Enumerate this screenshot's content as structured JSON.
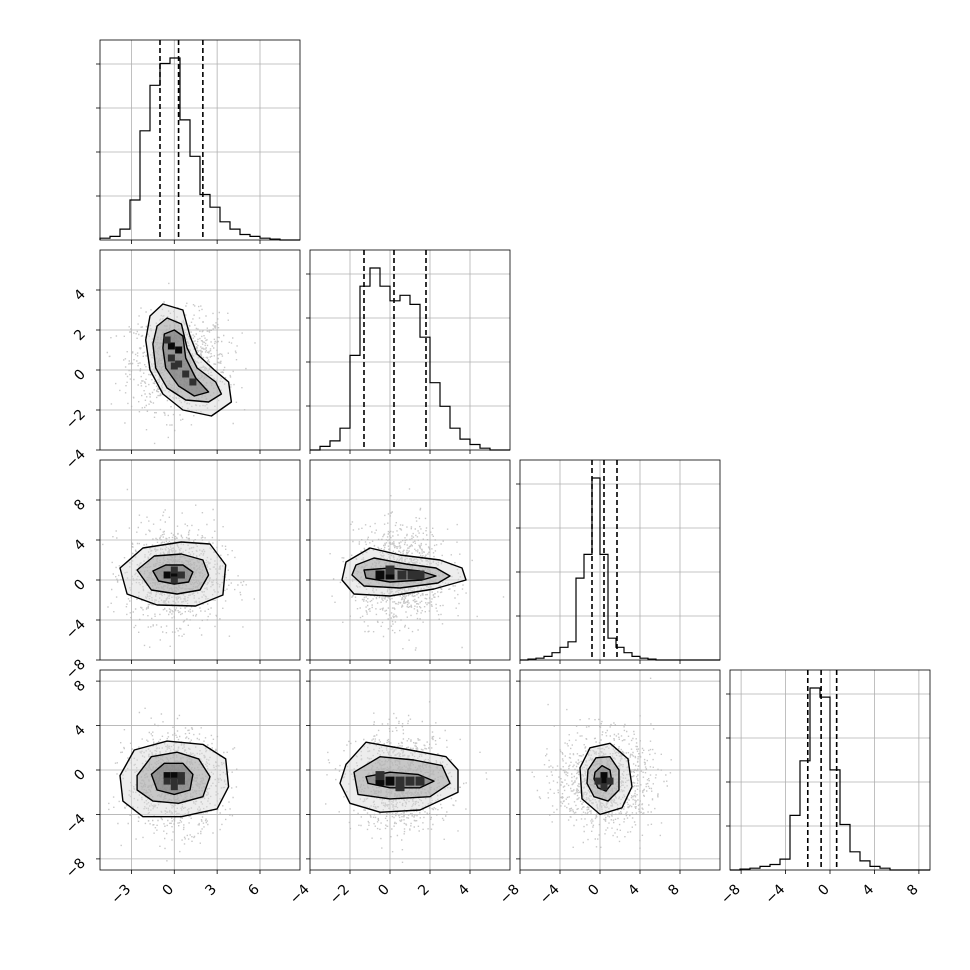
{
  "chart_data": {
    "type": "corner",
    "parameters": [
      {
        "range": [
          -5.2,
          8.8
        ],
        "ticks": [
          -3,
          0,
          3,
          6
        ],
        "tick_labels": [
          "−3",
          "0",
          "3",
          "6"
        ],
        "quantiles": [
          -1.0,
          0.3,
          2.0
        ],
        "hist_x0": -5.2,
        "hist_bin_width": 0.7,
        "hist": [
          0.01,
          0.02,
          0.06,
          0.22,
          0.6,
          0.85,
          0.97,
          1.0,
          0.66,
          0.46,
          0.25,
          0.18,
          0.1,
          0.06,
          0.03,
          0.02,
          0.01,
          0.005,
          0.0,
          0.0
        ]
      },
      {
        "range": [
          -4.0,
          6.0
        ],
        "ticks": [
          -4,
          -2,
          0,
          2,
          4
        ],
        "tick_labels": [
          "−4",
          "−2",
          "0",
          "2",
          "4"
        ],
        "quantiles": [
          -1.3,
          0.2,
          1.8
        ],
        "hist_x0": -4.0,
        "hist_bin_width": 0.5,
        "hist": [
          0.0,
          0.02,
          0.05,
          0.12,
          0.52,
          0.9,
          1.0,
          0.9,
          0.82,
          0.85,
          0.8,
          0.62,
          0.37,
          0.24,
          0.12,
          0.06,
          0.03,
          0.01,
          0.0,
          0.0
        ]
      },
      {
        "range": [
          -8.0,
          12.0
        ],
        "ticks": [
          -8,
          -4,
          0,
          4,
          8
        ],
        "tick_labels": [
          "−8",
          "−4",
          "0",
          "4",
          "8"
        ],
        "quantiles": [
          -0.8,
          0.4,
          1.7
        ],
        "hist_x0": -8.0,
        "hist_bin_width": 0.8,
        "hist": [
          0.0,
          0.005,
          0.01,
          0.02,
          0.04,
          0.07,
          0.1,
          0.45,
          0.58,
          1.0,
          0.58,
          0.12,
          0.07,
          0.04,
          0.02,
          0.01,
          0.005,
          0.0,
          0.0,
          0.0,
          0.0,
          0.0,
          0.0,
          0.0,
          0.0
        ]
      },
      {
        "range": [
          -9.0,
          9.0
        ],
        "ticks": [
          -8,
          -4,
          0,
          4,
          8
        ],
        "tick_labels": [
          "−8",
          "−4",
          "0",
          "4",
          "8"
        ],
        "quantiles": [
          -2.0,
          -0.8,
          0.6
        ],
        "hist_x0": -9.0,
        "hist_bin_width": 0.9,
        "hist": [
          0.0,
          0.005,
          0.01,
          0.02,
          0.03,
          0.06,
          0.3,
          0.6,
          1.0,
          0.95,
          0.55,
          0.25,
          0.1,
          0.05,
          0.02,
          0.01,
          0.0,
          0.0,
          0.0,
          0.0
        ]
      }
    ],
    "pairs": [
      {
        "row": 1,
        "col": 0,
        "center": [
          0.3,
          0.4
        ],
        "levels": [
          [
            [
              -1.7,
              2.7
            ],
            [
              -0.8,
              3.3
            ],
            [
              0.6,
              3.0
            ],
            [
              1.1,
              1.7
            ],
            [
              1.6,
              0.8
            ],
            [
              2.8,
              0.0
            ],
            [
              3.8,
              -0.6
            ],
            [
              4.0,
              -1.6
            ],
            [
              2.6,
              -2.3
            ],
            [
              0.6,
              -2.0
            ],
            [
              -0.8,
              -1.2
            ],
            [
              -1.7,
              0.0
            ],
            [
              -2.0,
              1.5
            ]
          ],
          [
            [
              -1.2,
              2.2
            ],
            [
              -0.5,
              2.6
            ],
            [
              0.5,
              2.3
            ],
            [
              0.9,
              1.1
            ],
            [
              1.6,
              0.1
            ],
            [
              2.9,
              -0.6
            ],
            [
              3.3,
              -1.2
            ],
            [
              2.4,
              -1.6
            ],
            [
              0.8,
              -1.5
            ],
            [
              -0.5,
              -0.9
            ],
            [
              -1.3,
              0.1
            ],
            [
              -1.5,
              1.3
            ]
          ],
          [
            [
              -0.7,
              1.8
            ],
            [
              0.0,
              2.0
            ],
            [
              0.6,
              1.7
            ],
            [
              0.8,
              0.6
            ],
            [
              1.5,
              -0.4
            ],
            [
              2.4,
              -1.1
            ],
            [
              1.4,
              -1.3
            ],
            [
              0.3,
              -0.8
            ],
            [
              -0.6,
              0.1
            ],
            [
              -0.8,
              1.1
            ]
          ]
        ],
        "cells": [
          [
            -0.2,
            1.2
          ],
          [
            0.3,
            1.0
          ],
          [
            -0.2,
            0.6
          ],
          [
            0.3,
            0.3
          ],
          [
            0.8,
            -0.2
          ],
          [
            1.3,
            -0.6
          ],
          [
            -0.5,
            1.5
          ],
          [
            0.0,
            0.2
          ]
        ]
      },
      {
        "row": 2,
        "col": 0,
        "center": [
          0.0,
          0.5
        ],
        "levels": [
          [
            [
              -3.8,
              1.2
            ],
            [
              -2.2,
              3.2
            ],
            [
              0.5,
              3.8
            ],
            [
              2.5,
              3.6
            ],
            [
              3.6,
              1.5
            ],
            [
              3.4,
              -1.5
            ],
            [
              1.5,
              -2.6
            ],
            [
              -1.2,
              -2.5
            ],
            [
              -3.3,
              -1.4
            ]
          ],
          [
            [
              -2.6,
              1.0
            ],
            [
              -1.4,
              2.4
            ],
            [
              0.5,
              2.6
            ],
            [
              2.0,
              2.0
            ],
            [
              2.4,
              0.5
            ],
            [
              1.8,
              -1.0
            ],
            [
              0.2,
              -1.4
            ],
            [
              -1.6,
              -1.0
            ]
          ],
          [
            [
              -1.5,
              0.9
            ],
            [
              -0.6,
              1.5
            ],
            [
              0.6,
              1.5
            ],
            [
              1.3,
              0.8
            ],
            [
              1.0,
              -0.2
            ],
            [
              0.0,
              -0.4
            ],
            [
              -1.1,
              -0.1
            ]
          ]
        ],
        "cells": [
          [
            -0.5,
            0.5
          ],
          [
            0.0,
            0.5
          ],
          [
            0.5,
            0.5
          ],
          [
            0.0,
            1.0
          ],
          [
            0.0,
            0.0
          ]
        ]
      },
      {
        "row": 2,
        "col": 1,
        "center": [
          0.5,
          0.5
        ],
        "levels": [
          [
            [
              -2.2,
              1.8
            ],
            [
              -1.0,
              3.2
            ],
            [
              0.5,
              2.5
            ],
            [
              2.5,
              2.0
            ],
            [
              3.6,
              1.2
            ],
            [
              3.8,
              0.0
            ],
            [
              2.2,
              -0.9
            ],
            [
              0.0,
              -1.6
            ],
            [
              -1.8,
              -1.4
            ],
            [
              -2.4,
              0.0
            ]
          ],
          [
            [
              -1.7,
              1.5
            ],
            [
              -0.8,
              2.2
            ],
            [
              0.8,
              1.6
            ],
            [
              2.3,
              1.2
            ],
            [
              3.0,
              0.4
            ],
            [
              2.4,
              -0.3
            ],
            [
              0.5,
              -0.8
            ],
            [
              -1.3,
              -0.6
            ],
            [
              -1.9,
              0.5
            ]
          ],
          [
            [
              -1.3,
              1.0
            ],
            [
              0.0,
              1.2
            ],
            [
              1.5,
              0.9
            ],
            [
              2.3,
              0.4
            ],
            [
              1.6,
              0.0
            ],
            [
              0.0,
              -0.2
            ],
            [
              -1.2,
              0.2
            ]
          ]
        ],
        "cells": [
          [
            -0.5,
            0.5
          ],
          [
            0.0,
            0.5
          ],
          [
            0.6,
            0.5
          ],
          [
            1.1,
            0.5
          ],
          [
            1.5,
            0.5
          ],
          [
            0.0,
            1.0
          ]
        ]
      },
      {
        "row": 3,
        "col": 0,
        "center": [
          0.0,
          -1.0
        ],
        "levels": [
          [
            [
              -3.8,
              -0.5
            ],
            [
              -2.8,
              1.8
            ],
            [
              -0.5,
              2.6
            ],
            [
              2.0,
              2.3
            ],
            [
              3.6,
              1.0
            ],
            [
              3.8,
              -1.5
            ],
            [
              3.0,
              -3.5
            ],
            [
              0.5,
              -4.2
            ],
            [
              -2.2,
              -4.2
            ],
            [
              -3.6,
              -2.8
            ]
          ],
          [
            [
              -2.6,
              -0.5
            ],
            [
              -1.6,
              1.2
            ],
            [
              0.2,
              1.6
            ],
            [
              1.7,
              1.0
            ],
            [
              2.5,
              -0.6
            ],
            [
              2.0,
              -2.4
            ],
            [
              0.3,
              -3.0
            ],
            [
              -1.5,
              -2.8
            ],
            [
              -2.6,
              -1.8
            ]
          ],
          [
            [
              -1.6,
              -0.4
            ],
            [
              -0.7,
              0.6
            ],
            [
              0.6,
              0.6
            ],
            [
              1.3,
              -0.4
            ],
            [
              1.1,
              -1.8
            ],
            [
              0.0,
              -2.2
            ],
            [
              -1.2,
              -1.8
            ]
          ]
        ],
        "cells": [
          [
            -0.5,
            -0.5
          ],
          [
            0.0,
            -0.5
          ],
          [
            0.5,
            -0.5
          ],
          [
            -0.5,
            -1.0
          ],
          [
            0.0,
            -1.0
          ],
          [
            0.5,
            -1.0
          ],
          [
            0.0,
            -1.5
          ]
        ]
      },
      {
        "row": 3,
        "col": 1,
        "center": [
          0.5,
          -1.0
        ],
        "levels": [
          [
            [
              -2.2,
              0.5
            ],
            [
              -1.2,
              2.5
            ],
            [
              1.0,
              1.8
            ],
            [
              2.8,
              1.2
            ],
            [
              3.4,
              0.0
            ],
            [
              3.4,
              -2.0
            ],
            [
              1.5,
              -3.6
            ],
            [
              -0.5,
              -3.8
            ],
            [
              -2.0,
              -3.0
            ],
            [
              -2.5,
              -1.2
            ]
          ],
          [
            [
              -1.8,
              -0.2
            ],
            [
              -0.5,
              1.2
            ],
            [
              1.2,
              0.9
            ],
            [
              2.6,
              0.4
            ],
            [
              3.0,
              -1.2
            ],
            [
              2.0,
              -2.4
            ],
            [
              0.0,
              -2.6
            ],
            [
              -1.6,
              -2.2
            ]
          ],
          [
            [
              -1.2,
              -0.6
            ],
            [
              0.0,
              -0.2
            ],
            [
              1.4,
              -0.4
            ],
            [
              2.2,
              -1.0
            ],
            [
              1.5,
              -1.6
            ],
            [
              0.0,
              -1.6
            ],
            [
              -1.1,
              -1.2
            ]
          ]
        ],
        "cells": [
          [
            -0.5,
            -1.0
          ],
          [
            0.0,
            -1.0
          ],
          [
            0.5,
            -1.0
          ],
          [
            1.0,
            -1.0
          ],
          [
            1.5,
            -1.0
          ],
          [
            -0.5,
            -0.5
          ],
          [
            0.5,
            -1.5
          ]
        ]
      },
      {
        "row": 3,
        "col": 2,
        "center": [
          0.4,
          -1.0
        ],
        "levels": [
          [
            [
              -2.0,
              0.2
            ],
            [
              -1.0,
              2.0
            ],
            [
              1.0,
              2.4
            ],
            [
              2.8,
              1.0
            ],
            [
              3.2,
              -1.5
            ],
            [
              2.2,
              -3.4
            ],
            [
              0.0,
              -4.0
            ],
            [
              -1.8,
              -2.6
            ]
          ],
          [
            [
              -1.2,
              0.0
            ],
            [
              -0.4,
              1.1
            ],
            [
              1.0,
              1.2
            ],
            [
              1.9,
              0.0
            ],
            [
              1.9,
              -1.8
            ],
            [
              0.8,
              -2.8
            ],
            [
              -0.6,
              -2.4
            ],
            [
              -1.3,
              -1.2
            ]
          ],
          [
            [
              -0.5,
              -0.2
            ],
            [
              0.2,
              0.4
            ],
            [
              1.0,
              0.0
            ],
            [
              1.2,
              -1.2
            ],
            [
              0.6,
              -1.9
            ],
            [
              -0.2,
              -1.6
            ],
            [
              -0.6,
              -0.8
            ]
          ]
        ],
        "cells": [
          [
            0.4,
            -0.5
          ],
          [
            0.4,
            -1.0
          ],
          [
            0.4,
            -1.5
          ],
          [
            -0.2,
            -1.0
          ],
          [
            1.0,
            -1.0
          ]
        ]
      }
    ]
  }
}
